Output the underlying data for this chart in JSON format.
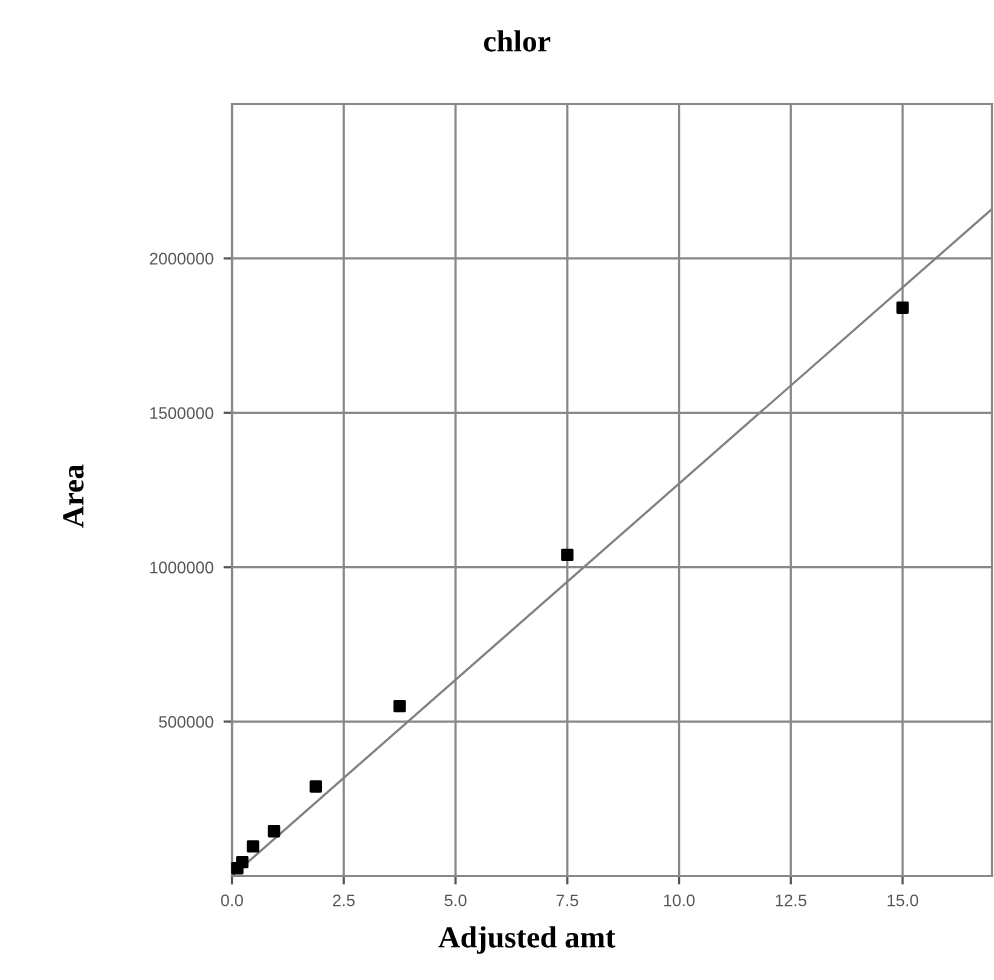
{
  "chart_data": {
    "type": "scatter",
    "title": "chlor",
    "xlabel": "Adjusted amt",
    "ylabel": "Area",
    "xlim": [
      0,
      17
    ],
    "ylim": [
      0,
      2500000
    ],
    "xticks": [
      {
        "value": 0,
        "label": "0.0"
      },
      {
        "value": 2.5,
        "label": "2.5"
      },
      {
        "value": 5,
        "label": "5.0"
      },
      {
        "value": 7.5,
        "label": "7.5"
      },
      {
        "value": 10,
        "label": "10.0"
      },
      {
        "value": 12.5,
        "label": "12.5"
      },
      {
        "value": 15,
        "label": "15.0"
      }
    ],
    "yticks": [
      500000,
      1000000,
      1500000,
      2000000
    ],
    "grid": true,
    "series": [
      {
        "color": "#000000",
        "marker": "square",
        "x": [
          0.12,
          0.23,
          0.47,
          0.94,
          1.875,
          3.75,
          7.5,
          15
        ],
        "values": [
          25000,
          45000,
          96000,
          145000,
          290000,
          550000,
          1040000,
          1840000
        ]
      },
      {
        "type": "line",
        "color": "#808080",
        "x": [
          0,
          17
        ],
        "values": [
          0,
          2160000
        ]
      }
    ]
  }
}
